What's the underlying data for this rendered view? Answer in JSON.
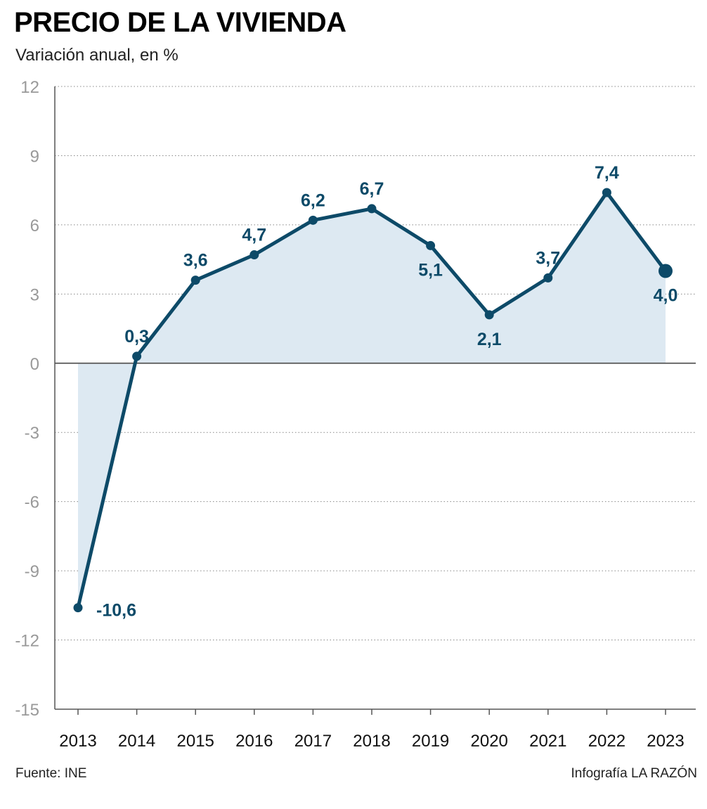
{
  "header": {
    "title": "PRECIO DE LA VIVIENDA",
    "subtitle": "Variación anual, en %"
  },
  "footer": {
    "source": "Fuente: INE",
    "credit": "Infografía LA RAZÓN"
  },
  "colors": {
    "line": "#0d4a68",
    "area": "#dde9f2",
    "grid": "#888888",
    "axis": "#555555",
    "tick_y": "#999999"
  },
  "chart_data": {
    "type": "line",
    "title": "PRECIO DE LA VIVIENDA",
    "subtitle": "Variación anual, en %",
    "xlabel": "",
    "ylabel": "",
    "x": [
      "2013",
      "2014",
      "2015",
      "2016",
      "2017",
      "2018",
      "2019",
      "2020",
      "2021",
      "2022",
      "2023"
    ],
    "values": [
      -10.6,
      0.3,
      3.6,
      4.7,
      6.2,
      6.7,
      5.1,
      2.1,
      3.7,
      7.4,
      4.0
    ],
    "data_labels": [
      "-10,6",
      "0,3",
      "3,6",
      "4,7",
      "6,2",
      "6,7",
      "5,1",
      "2,1",
      "3,7",
      "7,4",
      "4,0"
    ],
    "label_positions": [
      "right",
      "above",
      "above",
      "above",
      "above",
      "above",
      "below",
      "below",
      "above",
      "above",
      "below"
    ],
    "y_ticks": [
      12,
      9,
      6,
      3,
      0,
      -3,
      -6,
      -9,
      -12,
      -15
    ],
    "y_tick_labels": [
      "12",
      "9",
      "6",
      "3",
      "0",
      "-3",
      "-6",
      "-9",
      "-12",
      "-15"
    ],
    "ylim": [
      -15,
      12
    ],
    "grid": true,
    "area_fill": true,
    "highlight_last_point": true
  }
}
